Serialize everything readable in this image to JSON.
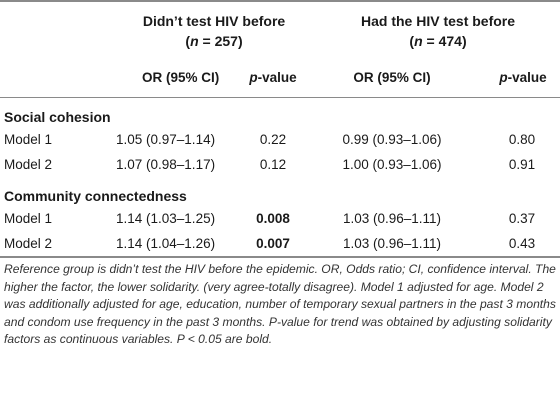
{
  "groups": [
    {
      "title": "Didn’t test HIV before",
      "n_open": "(",
      "n_var": "n",
      "n_eq": " = 257)"
    },
    {
      "title": "Had the HIV test before",
      "n_open": "(",
      "n_var": "n",
      "n_eq": " = 474)"
    }
  ],
  "columns": {
    "or_label": "OR (95% CI)",
    "p_italic": "p",
    "p_rest": "-value"
  },
  "sections": [
    {
      "title": "Social cohesion",
      "rows": [
        {
          "label": "Model 1",
          "or1": "1.05 (0.97–1.14)",
          "p1": "0.22",
          "p1_bold": false,
          "or2": "0.99 (0.93–1.06)",
          "p2": "0.80"
        },
        {
          "label": "Model 2",
          "or1": "1.07 (0.98–1.17)",
          "p1": "0.12",
          "p1_bold": false,
          "or2": "1.00 (0.93–1.06)",
          "p2": "0.91"
        }
      ]
    },
    {
      "title": "Community connectedness",
      "rows": [
        {
          "label": "Model 1",
          "or1": "1.14 (1.03–1.25)",
          "p1": "0.008",
          "p1_bold": true,
          "or2": "1.03 (0.96–1.11)",
          "p2": "0.37"
        },
        {
          "label": "Model 2",
          "or1": "1.14 (1.04–1.26)",
          "p1": "0.007",
          "p1_bold": true,
          "or2": "1.03 (0.96–1.11)",
          "p2": "0.43"
        }
      ]
    }
  ],
  "footnote": "Reference group is didn’t test the HIV before the epidemic. OR, Odds ratio; CI, confidence interval. The higher the factor, the lower solidarity. (very agree-totally disagree). Model 1 adjusted for age. Model 2 was additionally adjusted for age, education, number of temporary sexual partners in the past 3 months and condom use frequency in the past 3 months. P-value for trend was obtained by adjusting solidarity factors as continuous variables. P < 0.05 are bold."
}
